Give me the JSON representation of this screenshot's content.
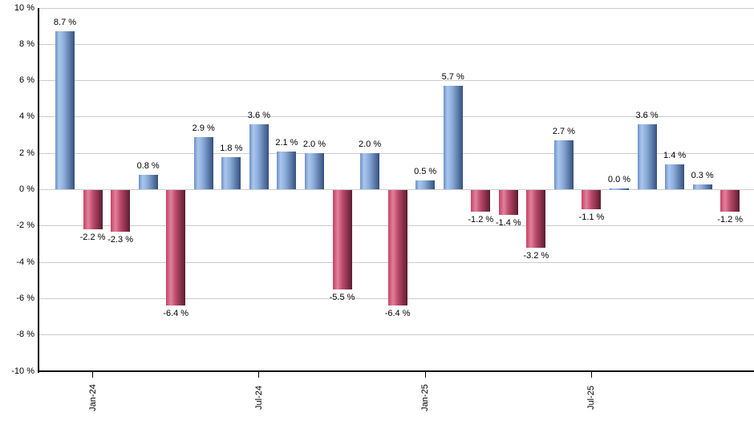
{
  "chart_data": {
    "type": "bar",
    "title": "",
    "description": "Monthly returns bar chart, positive months blue, negative months red",
    "values": [
      8.7,
      -2.2,
      -2.3,
      0.8,
      -6.4,
      2.9,
      1.8,
      3.6,
      2.1,
      2.0,
      -5.5,
      2.0,
      -6.4,
      0.5,
      5.7,
      -1.2,
      -1.4,
      -3.2,
      2.7,
      -1.1,
      0.0,
      3.6,
      1.4,
      0.3,
      -1.2
    ],
    "value_labels": [
      "8.7 %",
      "-2.2 %",
      "-2.3 %",
      "0.8 %",
      "-6.4 %",
      "2.9 %",
      "1.8 %",
      "3.6 %",
      "2.1 %",
      "2.0 %",
      "-5.5 %",
      "2.0 %",
      "-6.4 %",
      "0.5 %",
      "5.7 %",
      "-1.2 %",
      "-1.4 %",
      "-3.2 %",
      "2.7 %",
      "-1.1 %",
      "0.0 %",
      "3.6 %",
      "1.4 %",
      "0.3 %",
      "-1.2 %"
    ],
    "ylim": [
      -10,
      10
    ],
    "grid": true,
    "legend": "none",
    "yticks": [
      {
        "value": 10,
        "label": "10 %"
      },
      {
        "value": 8,
        "label": "8 %"
      },
      {
        "value": 6,
        "label": "6 %"
      },
      {
        "value": 4,
        "label": "4 %"
      },
      {
        "value": 2,
        "label": "2 %"
      },
      {
        "value": 0,
        "label": "0 %"
      },
      {
        "value": -2,
        "label": "-2 %"
      },
      {
        "value": -4,
        "label": "-4 %"
      },
      {
        "value": -6,
        "label": "-6 %"
      },
      {
        "value": -8,
        "label": "-8 %"
      },
      {
        "value": -10,
        "label": "-10 %"
      }
    ],
    "xticks": [
      {
        "bar_index": 1,
        "label": "Jan-24"
      },
      {
        "bar_index": 7,
        "label": "Jul-24"
      },
      {
        "bar_index": 13,
        "label": "Jan-25"
      },
      {
        "bar_index": 19,
        "label": "Jul-25"
      }
    ],
    "colors": {
      "positive_edge": "#6c90c8",
      "positive_light": "#aac6ec",
      "positive_mid": "#8badda",
      "positive_dark": "#35507e",
      "negative_edge": "#c94065",
      "negative_light": "#e0829b",
      "negative_mid": "#bc4a6b",
      "negative_dark": "#5c1c31",
      "gridline": "#cccccc",
      "axis": "#000000",
      "text": "#000000"
    }
  }
}
